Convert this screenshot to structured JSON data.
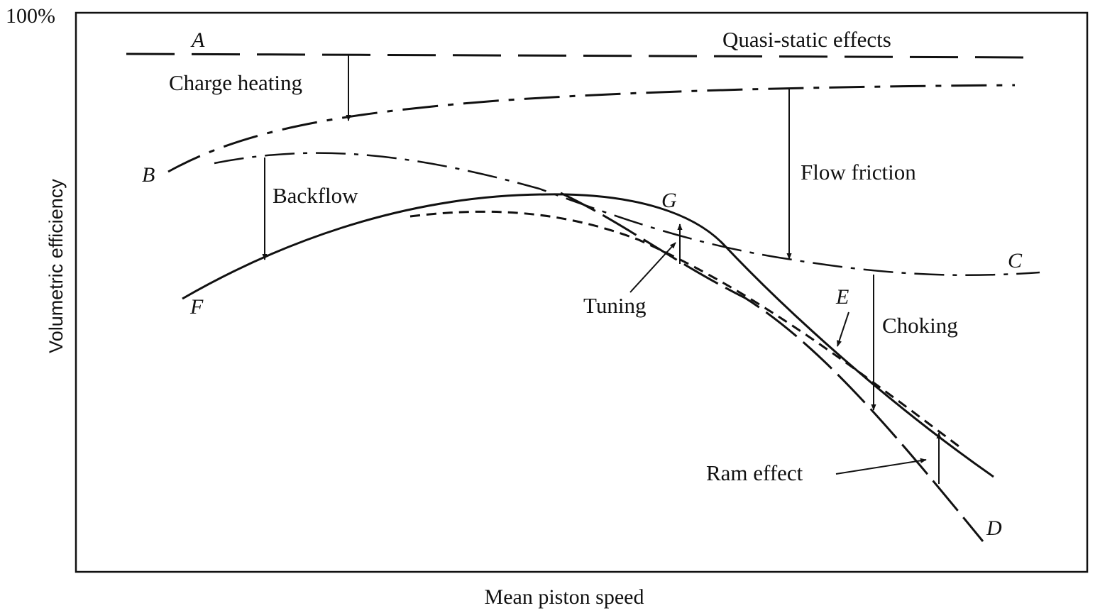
{
  "chart_data": {
    "type": "line",
    "y_top_tick": "100%",
    "xlabel": "Mean piston speed",
    "ylabel": "Volumetric efficiency",
    "xlim": [
      0,
      1
    ],
    "ylim": [
      0,
      1
    ],
    "grid": false,
    "series": [
      {
        "name": "A",
        "style": "long-dash",
        "x": [
          0.05,
          0.2,
          0.4,
          0.6,
          0.8,
          0.95
        ],
        "y": [
          0.925,
          0.924,
          0.923,
          0.922,
          0.921,
          0.92
        ]
      },
      {
        "name": "B",
        "style": "dash-dot",
        "x": [
          0.09,
          0.15,
          0.27,
          0.4,
          0.6,
          0.75,
          0.93
        ],
        "y": [
          0.71,
          0.76,
          0.8,
          0.83,
          0.855,
          0.865,
          0.87
        ]
      },
      {
        "name": "C",
        "style": "dash-dot",
        "x": [
          0.14,
          0.26,
          0.39,
          0.45,
          0.5,
          0.56,
          0.63,
          0.7,
          0.78,
          0.85,
          0.95
        ],
        "y": [
          0.725,
          0.74,
          0.69,
          0.63,
          0.57,
          0.5,
          0.46,
          0.435,
          0.42,
          0.42,
          0.425
        ]
      },
      {
        "name": "F",
        "style": "solid",
        "x": [
          0.11,
          0.2,
          0.33,
          0.47,
          0.59,
          0.64,
          0.69,
          0.76,
          0.85,
          0.91
        ],
        "y": [
          0.44,
          0.53,
          0.62,
          0.66,
          0.63,
          0.57,
          0.48,
          0.34,
          0.19,
          0.1
        ]
      },
      {
        "name": "E",
        "style": "short-dash",
        "x": [
          0.33,
          0.4,
          0.48,
          0.55,
          0.61,
          0.67,
          0.73,
          0.8,
          0.86,
          0.93
        ],
        "y": [
          0.62,
          0.64,
          0.61,
          0.55,
          0.49,
          0.43,
          0.36,
          0.28,
          0.2,
          0.12
        ]
      },
      {
        "name": "D",
        "style": "long-dash",
        "x": [
          0.48,
          0.56,
          0.62,
          0.68,
          0.74,
          0.8,
          0.87,
          0.9
        ],
        "y": [
          0.66,
          0.6,
          0.53,
          0.45,
          0.36,
          0.24,
          0.09,
          0.05
        ]
      }
    ],
    "annotations": [
      {
        "id": "quasi",
        "text": "Quasi-static effects"
      },
      {
        "id": "charge",
        "text": "Charge heating"
      },
      {
        "id": "flow",
        "text": "Flow friction"
      },
      {
        "id": "backflow",
        "text": "Backflow"
      },
      {
        "id": "tuning",
        "text": "Tuning"
      },
      {
        "id": "choking",
        "text": "Choking"
      },
      {
        "id": "ram",
        "text": "Ram effect"
      }
    ],
    "point_labels": [
      "A",
      "B",
      "C",
      "D",
      "E",
      "F",
      "G"
    ]
  }
}
